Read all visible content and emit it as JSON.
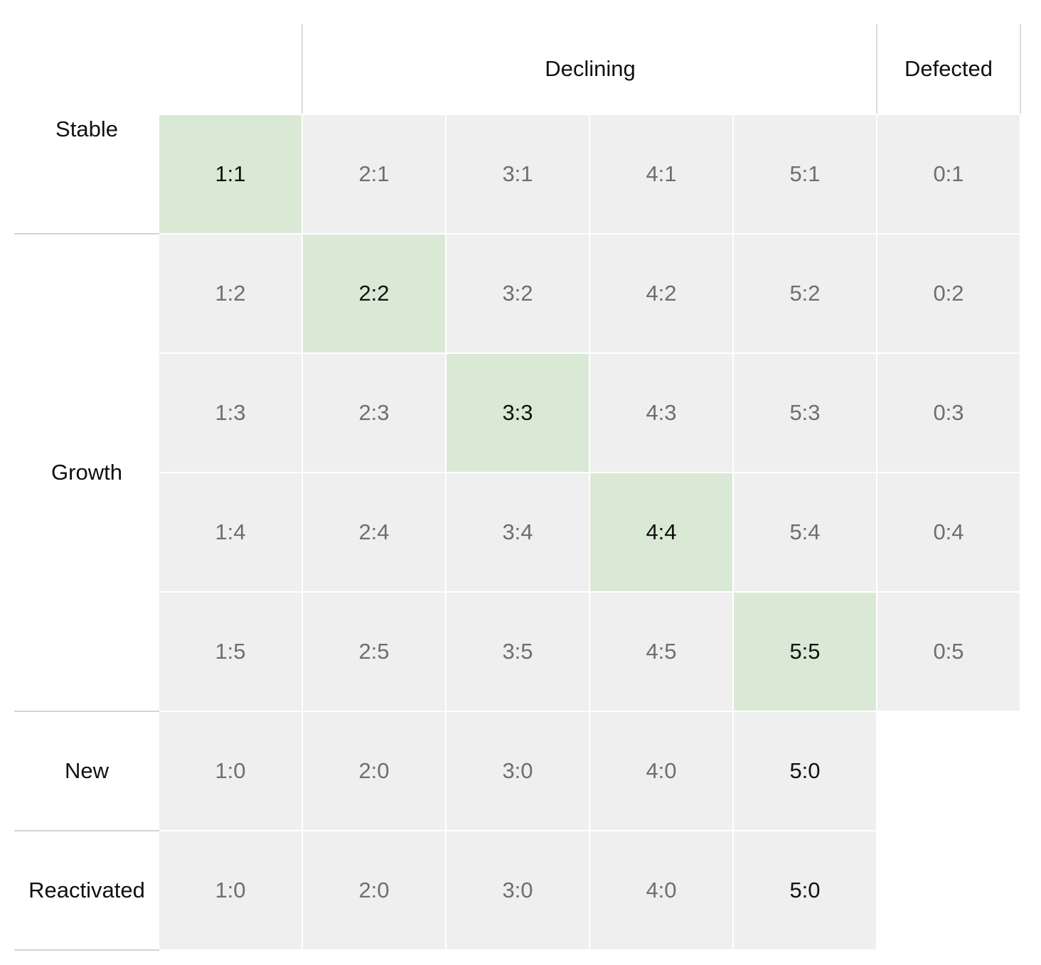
{
  "column_groups": [
    {
      "label": "Declining"
    },
    {
      "label": "Defected"
    }
  ],
  "row_groups": [
    {
      "label": "Stable"
    },
    {
      "label": "Growth"
    },
    {
      "label": "New"
    },
    {
      "label": "Reactivated"
    }
  ],
  "rows": [
    {
      "cells": [
        {
          "text": "1:1",
          "style": "diag"
        },
        {
          "text": "2:1",
          "style": "normal"
        },
        {
          "text": "3:1",
          "style": "normal"
        },
        {
          "text": "4:1",
          "style": "normal"
        },
        {
          "text": "5:1",
          "style": "normal"
        },
        {
          "text": "0:1",
          "style": "normal"
        }
      ]
    },
    {
      "cells": [
        {
          "text": "1:2",
          "style": "normal"
        },
        {
          "text": "2:2",
          "style": "diag"
        },
        {
          "text": "3:2",
          "style": "normal"
        },
        {
          "text": "4:2",
          "style": "normal"
        },
        {
          "text": "5:2",
          "style": "normal"
        },
        {
          "text": "0:2",
          "style": "normal"
        }
      ]
    },
    {
      "cells": [
        {
          "text": "1:3",
          "style": "normal"
        },
        {
          "text": "2:3",
          "style": "normal"
        },
        {
          "text": "3:3",
          "style": "diag"
        },
        {
          "text": "4:3",
          "style": "normal"
        },
        {
          "text": "5:3",
          "style": "normal"
        },
        {
          "text": "0:3",
          "style": "normal"
        }
      ]
    },
    {
      "cells": [
        {
          "text": "1:4",
          "style": "normal"
        },
        {
          "text": "2:4",
          "style": "normal"
        },
        {
          "text": "3:4",
          "style": "normal"
        },
        {
          "text": "4:4",
          "style": "diag"
        },
        {
          "text": "5:4",
          "style": "normal"
        },
        {
          "text": "0:4",
          "style": "normal"
        }
      ]
    },
    {
      "cells": [
        {
          "text": "1:5",
          "style": "normal"
        },
        {
          "text": "2:5",
          "style": "normal"
        },
        {
          "text": "3:5",
          "style": "normal"
        },
        {
          "text": "4:5",
          "style": "normal"
        },
        {
          "text": "5:5",
          "style": "diag"
        },
        {
          "text": "0:5",
          "style": "normal"
        }
      ]
    },
    {
      "cells": [
        {
          "text": "1:0",
          "style": "normal"
        },
        {
          "text": "2:0",
          "style": "normal"
        },
        {
          "text": "3:0",
          "style": "normal"
        },
        {
          "text": "4:0",
          "style": "normal"
        },
        {
          "text": "5:0",
          "style": "strong"
        }
      ]
    },
    {
      "cells": [
        {
          "text": "1:0",
          "style": "normal"
        },
        {
          "text": "2:0",
          "style": "normal"
        },
        {
          "text": "3:0",
          "style": "normal"
        },
        {
          "text": "4:0",
          "style": "normal"
        },
        {
          "text": "5:0",
          "style": "strong"
        }
      ]
    }
  ],
  "colors": {
    "cell_background": "#efefef",
    "diagonal_highlight": "#dae9d5",
    "muted_text": "#6e6e6e",
    "strong_text": "#111111"
  }
}
